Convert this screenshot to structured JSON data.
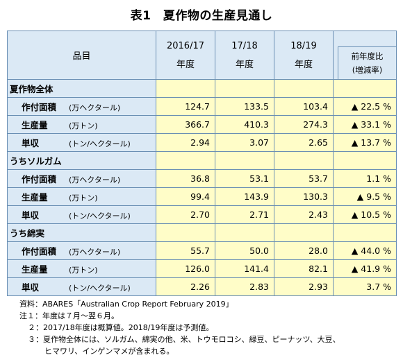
{
  "title": "表1　夏作物の生産見通し",
  "header": {
    "item": "品目",
    "years": [
      "2016/17",
      "17/18",
      "18/19"
    ],
    "year_suffix": "年度",
    "ratio_top": "前年度比",
    "ratio_sub": "(増減率)"
  },
  "groups": [
    {
      "name": "夏作物全体",
      "rows": [
        {
          "label": "作付面積",
          "unit": "(万ヘクタール)",
          "v1": "124.7",
          "v2": "133.5",
          "v3": "103.4",
          "change": "▲ 22.5 %"
        },
        {
          "label": "生産量",
          "unit": "(万トン)",
          "v1": "366.7",
          "v2": "410.3",
          "v3": "274.3",
          "change": "▲ 33.1 %"
        },
        {
          "label": "単収",
          "unit": "(トン/ヘクタール)",
          "v1": "2.94",
          "v2": "3.07",
          "v3": "2.65",
          "change": "▲ 13.7 %"
        }
      ]
    },
    {
      "name": "うちソルガム",
      "rows": [
        {
          "label": "作付面積",
          "unit": "(万ヘクタール)",
          "v1": "36.8",
          "v2": "53.1",
          "v3": "53.7",
          "change": "1.1 %"
        },
        {
          "label": "生産量",
          "unit": "(万トン)",
          "v1": "99.4",
          "v2": "143.9",
          "v3": "130.3",
          "change": "▲ 9.5 %"
        },
        {
          "label": "単収",
          "unit": "(トン/ヘクタール)",
          "v1": "2.70",
          "v2": "2.71",
          "v3": "2.43",
          "change": "▲ 10.5 %"
        }
      ]
    },
    {
      "name": "うち綿実",
      "rows": [
        {
          "label": "作付面積",
          "unit": "(万ヘクタール)",
          "v1": "55.7",
          "v2": "50.0",
          "v3": "28.0",
          "change": "▲ 44.0 %"
        },
        {
          "label": "生産量",
          "unit": "(万トン)",
          "v1": "126.0",
          "v2": "141.4",
          "v3": "82.1",
          "change": "▲ 41.9 %"
        },
        {
          "label": "単収",
          "unit": "(トン/ヘクタール)",
          "v1": "2.26",
          "v2": "2.83",
          "v3": "2.93",
          "change": "3.7 %"
        }
      ]
    }
  ],
  "notes": {
    "source": "資料：ABARES「Australian Crop Report February 2019」",
    "note1": "注１：年度は７月～翌６月。",
    "note2": "２：2017/18年度は概算値。2018/19年度は予測値。",
    "note3a": "３：夏作物全体には、ソルガム、綿実の他、米、トウモロコシ、緑豆、ピーナッツ、大豆、",
    "note3b": "ヒマワリ、インゲンマメが含まれる。"
  }
}
